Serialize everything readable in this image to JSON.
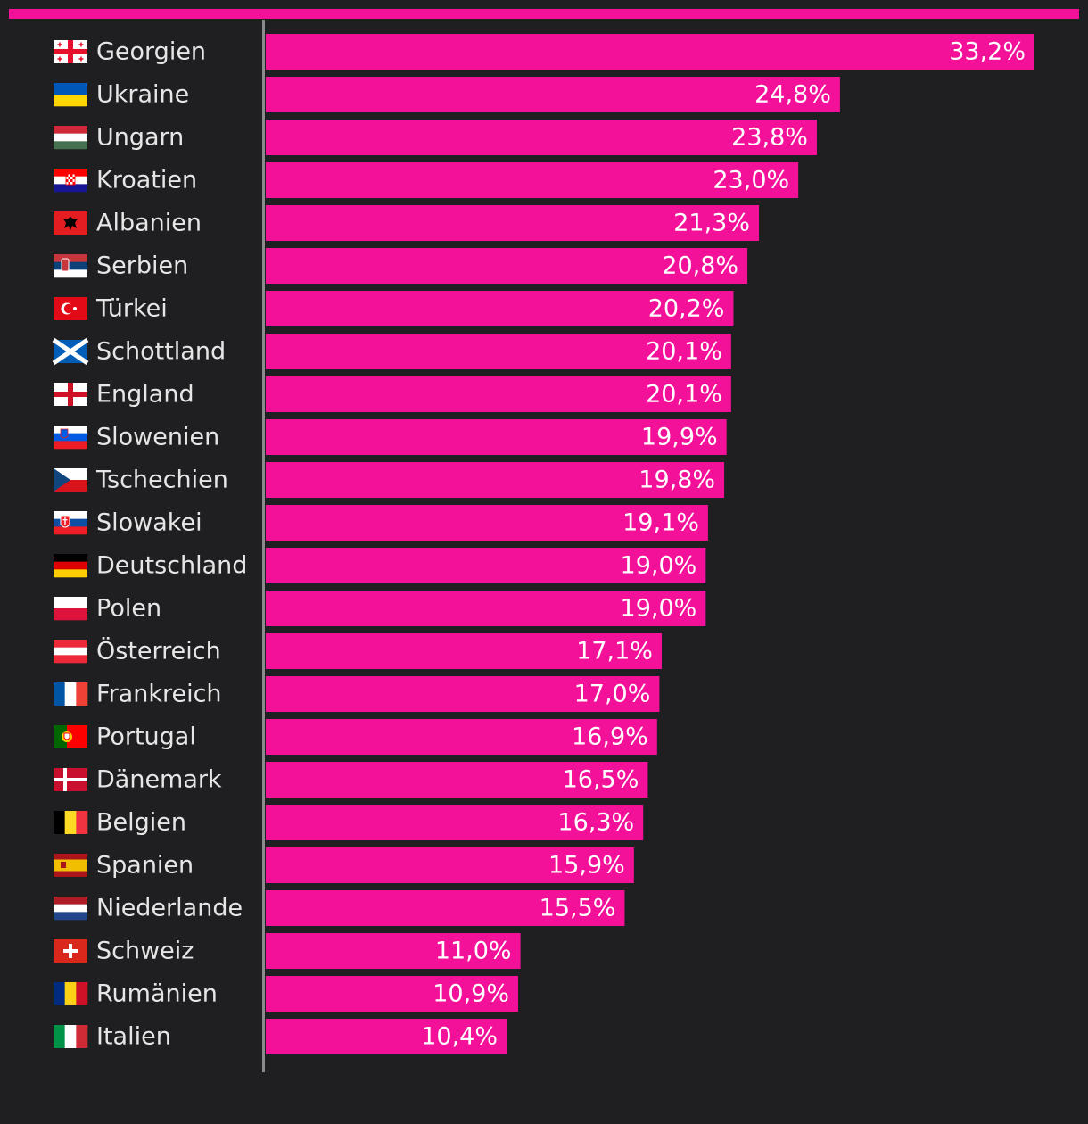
{
  "colors": {
    "background": "#1f1f21",
    "bar": "#f4119a",
    "axis": "#8a8a8a",
    "label": "#e6e6e6",
    "value_text": "#ffffff"
  },
  "chart_data": {
    "type": "bar",
    "orientation": "horizontal",
    "title": "",
    "xlabel": "",
    "ylabel": "",
    "xlim": [
      0,
      33.2
    ],
    "unit": "%",
    "categories": [
      "Georgien",
      "Ukraine",
      "Ungarn",
      "Kroatien",
      "Albanien",
      "Serbien",
      "Türkei",
      "Schottland",
      "England",
      "Slowenien",
      "Tschechien",
      "Slowakei",
      "Deutschland",
      "Polen",
      "Österreich",
      "Frankreich",
      "Portugal",
      "Dänemark",
      "Belgien",
      "Spanien",
      "Niederlande",
      "Schweiz",
      "Rumänien",
      "Italien"
    ],
    "values": [
      33.2,
      24.8,
      23.8,
      23.0,
      21.3,
      20.8,
      20.2,
      20.1,
      20.1,
      19.9,
      19.8,
      19.1,
      19.0,
      19.0,
      17.1,
      17.0,
      16.9,
      16.5,
      16.3,
      15.9,
      15.5,
      11.0,
      10.9,
      10.4
    ],
    "value_labels": [
      "33,2%",
      "24,8%",
      "23,8%",
      "23,0%",
      "21,3%",
      "20,8%",
      "20,2%",
      "20,1%",
      "20,1%",
      "19,9%",
      "19,8%",
      "19,1%",
      "19,0%",
      "19,0%",
      "17,1%",
      "17,0%",
      "16,9%",
      "16,5%",
      "16,3%",
      "15,9%",
      "15,5%",
      "11,0%",
      "10,9%",
      "10,4%"
    ],
    "flags": [
      "georgia-flag-icon",
      "ukraine-flag-icon",
      "hungary-flag-icon",
      "croatia-flag-icon",
      "albania-flag-icon",
      "serbia-flag-icon",
      "turkey-flag-icon",
      "scotland-flag-icon",
      "england-flag-icon",
      "slovenia-flag-icon",
      "czechia-flag-icon",
      "slovakia-flag-icon",
      "germany-flag-icon",
      "poland-flag-icon",
      "austria-flag-icon",
      "france-flag-icon",
      "portugal-flag-icon",
      "denmark-flag-icon",
      "belgium-flag-icon",
      "spain-flag-icon",
      "netherlands-flag-icon",
      "switzerland-flag-icon",
      "romania-flag-icon",
      "italy-flag-icon"
    ]
  }
}
